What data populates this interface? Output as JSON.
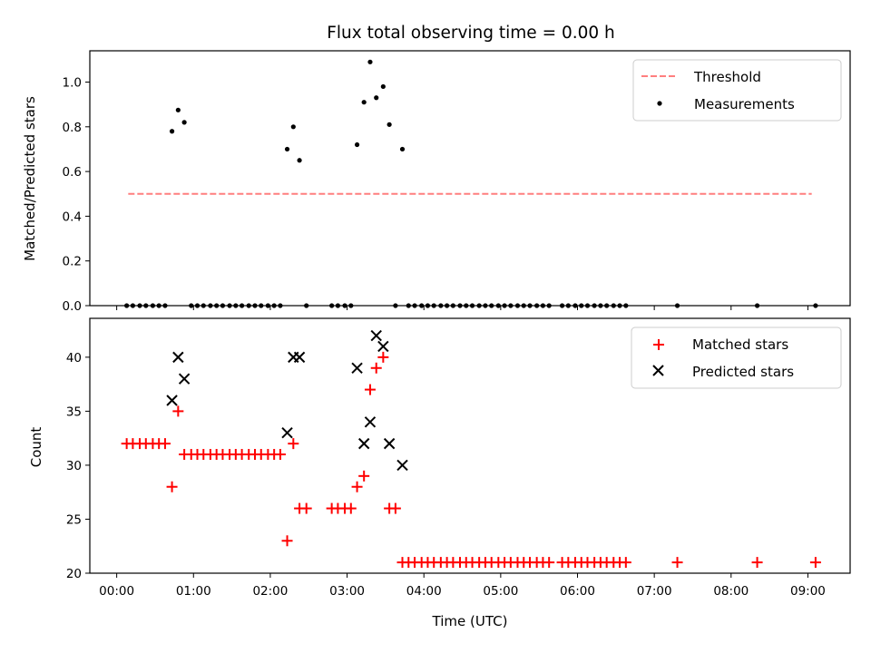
{
  "figure": {
    "title": "Flux total observing time = 0.00 h",
    "xlabel": "Time (UTC)",
    "x_ticks": [
      "00:00",
      "01:00",
      "02:00",
      "03:00",
      "04:00",
      "05:00",
      "06:00",
      "07:00",
      "08:00",
      "09:00"
    ]
  },
  "colors": {
    "threshold": "#ff7f7f",
    "measurements": "#000000",
    "matched": "#ff0000",
    "predicted": "#000000"
  },
  "chart_data": [
    {
      "type": "scatter",
      "ylabel": "Matched/Predicted stars",
      "xlim": [
        -0.35,
        9.55
      ],
      "ylim": [
        0,
        1.14
      ],
      "y_ticks": [
        "0.0",
        "0.2",
        "0.4",
        "0.6",
        "0.8",
        "1.0"
      ],
      "legend_position": "top-right",
      "threshold": {
        "name": "Threshold",
        "x_range": [
          0.15,
          9.05
        ],
        "y": 0.5
      },
      "measurements": {
        "name": "Measurements",
        "x": [
          0.13,
          0.21,
          0.3,
          0.38,
          0.47,
          0.55,
          0.63,
          0.72,
          0.8,
          0.88,
          0.97,
          1.05,
          1.13,
          1.22,
          1.3,
          1.38,
          1.47,
          1.55,
          1.63,
          1.72,
          1.8,
          1.88,
          1.97,
          2.05,
          2.13,
          2.22,
          2.3,
          2.38,
          2.47,
          2.8,
          2.88,
          2.97,
          3.05,
          3.13,
          3.22,
          3.3,
          3.38,
          3.47,
          3.55,
          3.63,
          3.72,
          3.8,
          3.88,
          3.97,
          4.05,
          4.13,
          4.22,
          4.3,
          4.38,
          4.47,
          4.55,
          4.63,
          4.72,
          4.8,
          4.88,
          4.97,
          5.05,
          5.13,
          5.22,
          5.3,
          5.38,
          5.47,
          5.55,
          5.63,
          5.8,
          5.88,
          5.97,
          6.05,
          6.13,
          6.22,
          6.3,
          6.38,
          6.47,
          6.55,
          6.63,
          7.3,
          8.34,
          9.1
        ],
        "y": [
          0,
          0,
          0,
          0,
          0,
          0,
          0,
          0.78,
          0.875,
          0.82,
          0,
          0,
          0,
          0,
          0,
          0,
          0,
          0,
          0,
          0,
          0,
          0,
          0,
          0,
          0,
          0.7,
          0.8,
          0.65,
          0,
          0,
          0,
          0,
          0,
          0.72,
          0.91,
          1.09,
          0.93,
          0.98,
          0.81,
          0,
          0.7,
          0,
          0,
          0,
          0,
          0,
          0,
          0,
          0,
          0,
          0,
          0,
          0,
          0,
          0,
          0,
          0,
          0,
          0,
          0,
          0,
          0,
          0,
          0,
          0,
          0,
          0,
          0,
          0,
          0,
          0,
          0,
          0,
          0,
          0,
          0,
          0,
          0
        ]
      }
    },
    {
      "type": "scatter",
      "ylabel": "Count",
      "xlim": [
        -0.35,
        9.55
      ],
      "ylim": [
        20,
        43.6
      ],
      "y_ticks": [
        "20",
        "25",
        "30",
        "35",
        "40"
      ],
      "legend_position": "top-right",
      "matched": {
        "name": "Matched stars",
        "x": [
          0.13,
          0.21,
          0.3,
          0.38,
          0.47,
          0.55,
          0.63,
          0.72,
          0.8,
          0.88,
          0.97,
          1.05,
          1.13,
          1.22,
          1.3,
          1.38,
          1.47,
          1.55,
          1.63,
          1.72,
          1.8,
          1.88,
          1.97,
          2.05,
          2.13,
          2.22,
          2.3,
          2.38,
          2.47,
          2.8,
          2.88,
          2.97,
          3.05,
          3.13,
          3.22,
          3.3,
          3.38,
          3.47,
          3.55,
          3.63,
          3.72,
          3.8,
          3.88,
          3.97,
          4.05,
          4.13,
          4.22,
          4.3,
          4.38,
          4.47,
          4.55,
          4.63,
          4.72,
          4.8,
          4.88,
          4.97,
          5.05,
          5.13,
          5.22,
          5.3,
          5.38,
          5.47,
          5.55,
          5.63,
          5.8,
          5.88,
          5.97,
          6.05,
          6.13,
          6.22,
          6.3,
          6.38,
          6.47,
          6.55,
          6.63,
          7.3,
          8.34,
          9.1
        ],
        "y": [
          32,
          32,
          32,
          32,
          32,
          32,
          32,
          28,
          35,
          31,
          31,
          31,
          31,
          31,
          31,
          31,
          31,
          31,
          31,
          31,
          31,
          31,
          31,
          31,
          31,
          23,
          32,
          26,
          26,
          26,
          26,
          26,
          26,
          28,
          29,
          37,
          39,
          40,
          26,
          26,
          21,
          21,
          21,
          21,
          21,
          21,
          21,
          21,
          21,
          21,
          21,
          21,
          21,
          21,
          21,
          21,
          21,
          21,
          21,
          21,
          21,
          21,
          21,
          21,
          21,
          21,
          21,
          21,
          21,
          21,
          21,
          21,
          21,
          21,
          21,
          21,
          21,
          21
        ]
      },
      "predicted": {
        "name": "Predicted stars",
        "x": [
          0.72,
          0.8,
          0.88,
          2.22,
          2.3,
          2.38,
          3.13,
          3.22,
          3.3,
          3.38,
          3.47,
          3.55,
          3.72
        ],
        "y": [
          36,
          40,
          38,
          33,
          40,
          40,
          39,
          32,
          34,
          42,
          41,
          32,
          30
        ]
      }
    }
  ]
}
